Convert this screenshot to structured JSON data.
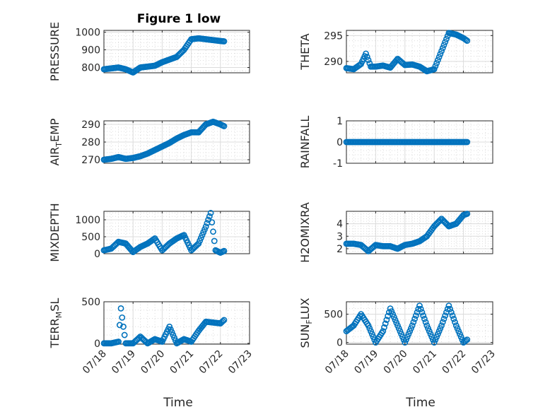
{
  "figure": {
    "title": "Figure 1 low"
  },
  "colors": {
    "marker": "#0072BD",
    "grid": "#dcdcdc",
    "axis": "#262626"
  },
  "chart_data": [
    {
      "type": "scatter",
      "ylabel": "PRESSURE",
      "ylim": [
        770,
        1010
      ],
      "yticks": [
        800,
        900,
        1000
      ],
      "x": [
        "07/18 00:00",
        "07/18 06:00",
        "07/18 12:00",
        "07/18 18:00",
        "07/19 00:00",
        "07/19 06:00",
        "07/19 12:00",
        "07/19 18:00",
        "07/20 00:00",
        "07/20 06:00",
        "07/20 12:00",
        "07/20 18:00",
        "07/21 00:00",
        "07/21 06:00",
        "07/21 12:00",
        "07/21 18:00",
        "07/22 00:00",
        "07/22 03:00"
      ],
      "y": [
        790,
        795,
        800,
        790,
        772,
        800,
        805,
        810,
        830,
        845,
        860,
        900,
        960,
        965,
        960,
        955,
        950,
        948
      ]
    },
    {
      "type": "scatter",
      "ylabel": "THETA",
      "ylim": [
        287.8,
        296
      ],
      "yticks": [
        290,
        295
      ],
      "x": [
        "07/18 00:00",
        "07/18 06:00",
        "07/18 12:00",
        "07/18 16:00",
        "07/18 20:00",
        "07/19 00:00",
        "07/19 06:00",
        "07/19 12:00",
        "07/19 18:00",
        "07/20 00:00",
        "07/20 06:00",
        "07/20 12:00",
        "07/20 18:00",
        "07/21 00:00",
        "07/21 06:00",
        "07/21 12:00",
        "07/21 18:00",
        "07/22 00:00",
        "07/22 03:00"
      ],
      "y": [
        288.7,
        288.5,
        289.5,
        291.5,
        289.0,
        289.0,
        289.2,
        288.8,
        290.5,
        289.3,
        289.4,
        289.0,
        288.1,
        288.5,
        292.0,
        295.5,
        295.2,
        294.5,
        294.0
      ]
    },
    {
      "type": "scatter",
      "ylabel": "AIR_TEMP",
      "ylim": [
        268,
        292
      ],
      "yticks": [
        270,
        280,
        290
      ],
      "x": [
        "07/18 00:00",
        "07/18 06:00",
        "07/18 12:00",
        "07/18 18:00",
        "07/19 00:00",
        "07/19 06:00",
        "07/19 12:00",
        "07/19 18:00",
        "07/20 00:00",
        "07/20 06:00",
        "07/20 12:00",
        "07/20 18:00",
        "07/21 00:00",
        "07/21 06:00",
        "07/21 12:00",
        "07/21 18:00",
        "07/22 00:00",
        "07/22 03:00"
      ],
      "y": [
        270,
        270.5,
        271.5,
        270.5,
        271,
        272,
        273.5,
        275.5,
        277.5,
        279.5,
        282,
        284,
        285.5,
        285.5,
        290,
        291.5,
        290,
        289
      ]
    },
    {
      "type": "scatter",
      "ylabel": "RAINFALL",
      "ylim": [
        -1,
        1
      ],
      "yticks": [
        -1,
        0,
        1
      ],
      "x": [
        "07/18 00:00",
        "07/18 12:00",
        "07/19 00:00",
        "07/19 12:00",
        "07/20 00:00",
        "07/20 12:00",
        "07/21 00:00",
        "07/21 12:00",
        "07/22 00:00",
        "07/22 03:00"
      ],
      "y": [
        0,
        0,
        0,
        0,
        0,
        0,
        0,
        0,
        0,
        0
      ]
    },
    {
      "type": "scatter",
      "ylabel": "MIXDEPTH",
      "ylim": [
        0,
        1250
      ],
      "yticks": [
        0,
        500,
        1000
      ],
      "x": [
        "07/18 00:00",
        "07/18 06:00",
        "07/18 12:00",
        "07/18 18:00",
        "07/19 00:00",
        "07/19 06:00",
        "07/19 12:00",
        "07/19 18:00",
        "07/20 00:00",
        "07/20 06:00",
        "07/20 12:00",
        "07/20 18:00",
        "07/21 00:00",
        "07/21 06:00",
        "07/21 12:00",
        "07/21 16:00",
        "07/21 20:00",
        "07/22 00:00",
        "07/22 03:00"
      ],
      "y": [
        100,
        150,
        350,
        300,
        50,
        200,
        300,
        450,
        100,
        300,
        450,
        550,
        100,
        300,
        800,
        1200,
        100,
        30,
        80
      ]
    },
    {
      "type": "scatter",
      "ylabel": "H2OMIXRA",
      "ylim": [
        1.6,
        5.0
      ],
      "yticks": [
        2,
        3,
        4
      ],
      "x": [
        "07/18 00:00",
        "07/18 06:00",
        "07/18 12:00",
        "07/18 18:00",
        "07/19 00:00",
        "07/19 06:00",
        "07/19 12:00",
        "07/19 18:00",
        "07/20 00:00",
        "07/20 06:00",
        "07/20 12:00",
        "07/20 18:00",
        "07/21 00:00",
        "07/21 06:00",
        "07/21 12:00",
        "07/21 18:00",
        "07/22 00:00",
        "07/22 03:00"
      ],
      "y": [
        2.4,
        2.4,
        2.3,
        1.8,
        2.3,
        2.2,
        2.2,
        2.0,
        2.3,
        2.4,
        2.6,
        3.0,
        3.8,
        4.4,
        3.8,
        4.0,
        4.7,
        4.8
      ]
    },
    {
      "type": "scatter",
      "ylabel": "TERR_MSL",
      "ylim": [
        -10,
        500
      ],
      "yticks": [
        0,
        500
      ],
      "x": [
        "07/18 00:00",
        "07/18 06:00",
        "07/18 12:00",
        "07/18 14:00",
        "07/18 16:00",
        "07/18 18:00",
        "07/19 00:00",
        "07/19 06:00",
        "07/19 12:00",
        "07/19 18:00",
        "07/20 00:00",
        "07/20 06:00",
        "07/20 12:00",
        "07/20 18:00",
        "07/21 00:00",
        "07/21 06:00",
        "07/21 12:00",
        "07/21 18:00",
        "07/22 00:00",
        "07/22 03:00"
      ],
      "y": [
        0,
        0,
        20,
        420,
        200,
        0,
        0,
        80,
        0,
        50,
        20,
        200,
        0,
        50,
        20,
        150,
        260,
        250,
        240,
        280
      ]
    },
    {
      "type": "scatter",
      "ylabel": "SUN_FLUX",
      "ylim": [
        -30,
        720
      ],
      "yticks": [
        0,
        500
      ],
      "x": [
        "07/18 00:00",
        "07/18 06:00",
        "07/18 12:00",
        "07/18 18:00",
        "07/19 00:00",
        "07/19 06:00",
        "07/19 12:00",
        "07/19 18:00",
        "07/20 00:00",
        "07/20 06:00",
        "07/20 12:00",
        "07/20 18:00",
        "07/21 00:00",
        "07/21 06:00",
        "07/21 12:00",
        "07/21 18:00",
        "07/22 00:00",
        "07/22 03:00"
      ],
      "y": [
        200,
        300,
        500,
        300,
        0,
        200,
        600,
        300,
        0,
        300,
        650,
        300,
        0,
        300,
        650,
        300,
        0,
        50
      ]
    }
  ],
  "xaxis": {
    "label": "Time",
    "ticks": [
      "07/18",
      "07/19",
      "07/20",
      "07/21",
      "07/22",
      "07/23"
    ],
    "tick_values": [
      "07/18 00:00",
      "07/19 00:00",
      "07/20 00:00",
      "07/21 00:00",
      "07/22 00:00",
      "07/23 00:00"
    ],
    "range": [
      "07/18 00:00",
      "07/23 00:00"
    ]
  }
}
